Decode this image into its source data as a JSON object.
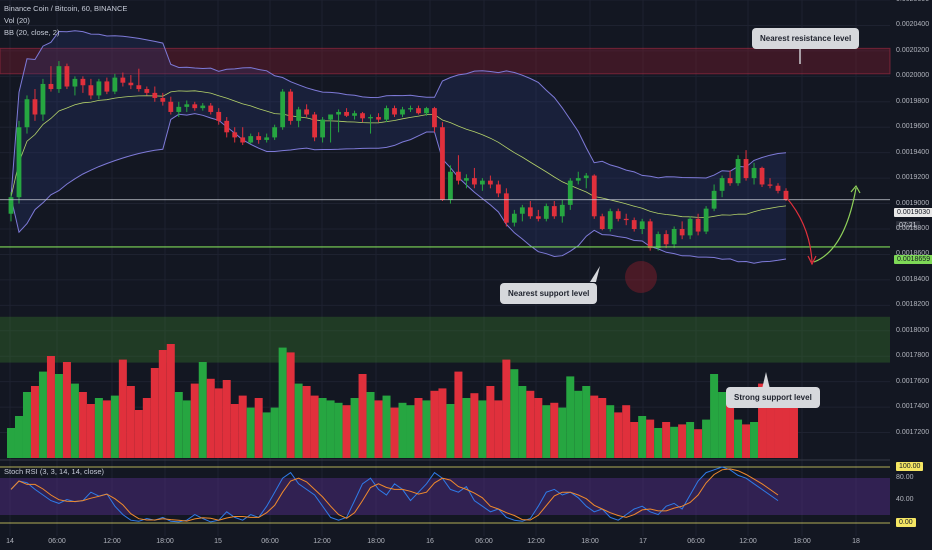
{
  "header": {
    "symbol": "Binance Coin / Bitcoin, 60, BINANCE",
    "vol": "Vol (20)",
    "bb": "BB (20, close, 2)",
    "stoch": "Stoch RSI (3, 3, 14, 14, close)"
  },
  "colors": {
    "up": "#26a641",
    "down": "#e0303c",
    "bb": "#7e7ad8",
    "basis": "#b5d36a",
    "resistance": "#8b1a2e",
    "support_zone": "#3a7d2a",
    "support_line": "#7ed957",
    "arrow_down": "#e0303c",
    "arrow_up": "#8fd15a"
  },
  "annotations": {
    "resistance": "Nearest resistance level",
    "nearest_support": "Nearest support level",
    "strong_support": "Strong support level"
  },
  "price_labels": {
    "current": "0.0019030",
    "timer": "07:21",
    "support": "0.0018659",
    "stoch_top": "100.00",
    "stoch_bottom": "0.00"
  },
  "chart_data": {
    "type": "candlestick",
    "ylim": [
      0.0017,
      0.00206
    ],
    "y_ticks": [
      "0.0020600",
      "0.0020400",
      "0.0020200",
      "0.0020000",
      "0.0019800",
      "0.0019600",
      "0.0019400",
      "0.0019200",
      "0.0019000",
      "0.0018800",
      "0.0018600",
      "0.0018400",
      "0.0018200",
      "0.0018000",
      "0.0017800",
      "0.0017600",
      "0.0017400",
      "0.0017200"
    ],
    "x_ticks": [
      "14",
      "06:00",
      "12:00",
      "18:00",
      "15",
      "06:00",
      "12:00",
      "18:00",
      "16",
      "06:00",
      "12:00",
      "18:00",
      "17",
      "06:00",
      "12:00",
      "18:00",
      "18"
    ],
    "resistance_zone": [
      0.002002,
      0.002022
    ],
    "strong_support_zone": [
      0.001775,
      0.001811
    ],
    "support_level": 0.0018659,
    "current_price": 0.001903,
    "candles": [
      {
        "o": 0.001892,
        "h": 0.001909,
        "l": 0.001886,
        "c": 0.001905
      },
      {
        "o": 0.001905,
        "h": 0.001965,
        "l": 0.0019,
        "c": 0.00196
      },
      {
        "o": 0.00196,
        "h": 0.001985,
        "l": 0.001955,
        "c": 0.001982
      },
      {
        "o": 0.001982,
        "h": 0.00199,
        "l": 0.001965,
        "c": 0.00197
      },
      {
        "o": 0.00197,
        "h": 0.001998,
        "l": 0.001965,
        "c": 0.001994
      },
      {
        "o": 0.001994,
        "h": 0.002008,
        "l": 0.001988,
        "c": 0.00199
      },
      {
        "o": 0.00199,
        "h": 0.002012,
        "l": 0.001987,
        "c": 0.002008
      },
      {
        "o": 0.002008,
        "h": 0.00201,
        "l": 0.00199,
        "c": 0.001992
      },
      {
        "o": 0.001992,
        "h": 0.002,
        "l": 0.001985,
        "c": 0.001998
      },
      {
        "o": 0.001998,
        "h": 0.002,
        "l": 0.001987,
        "c": 0.001993
      },
      {
        "o": 0.001993,
        "h": 0.001998,
        "l": 0.001982,
        "c": 0.001985
      },
      {
        "o": 0.001985,
        "h": 0.001998,
        "l": 0.001982,
        "c": 0.001996
      },
      {
        "o": 0.001996,
        "h": 0.001999,
        "l": 0.001986,
        "c": 0.001988
      },
      {
        "o": 0.001988,
        "h": 0.002002,
        "l": 0.001986,
        "c": 0.001999
      },
      {
        "o": 0.001999,
        "h": 0.002003,
        "l": 0.001992,
        "c": 0.001995
      },
      {
        "o": 0.001995,
        "h": 0.002001,
        "l": 0.00199,
        "c": 0.001993
      },
      {
        "o": 0.001993,
        "h": 0.002006,
        "l": 0.001988,
        "c": 0.00199
      },
      {
        "o": 0.00199,
        "h": 0.001992,
        "l": 0.001985,
        "c": 0.001987
      },
      {
        "o": 0.001987,
        "h": 0.001992,
        "l": 0.00198,
        "c": 0.001983
      },
      {
        "o": 0.001983,
        "h": 0.001987,
        "l": 0.001977,
        "c": 0.00198
      },
      {
        "o": 0.00198,
        "h": 0.001984,
        "l": 0.00197,
        "c": 0.001972
      },
      {
        "o": 0.001972,
        "h": 0.00198,
        "l": 0.001968,
        "c": 0.001976
      },
      {
        "o": 0.001976,
        "h": 0.001981,
        "l": 0.001972,
        "c": 0.001978
      },
      {
        "o": 0.001978,
        "h": 0.00198,
        "l": 0.001973,
        "c": 0.001975
      },
      {
        "o": 0.001975,
        "h": 0.001979,
        "l": 0.001973,
        "c": 0.001977
      },
      {
        "o": 0.001977,
        "h": 0.001979,
        "l": 0.00197,
        "c": 0.001972
      },
      {
        "o": 0.001972,
        "h": 0.001975,
        "l": 0.001962,
        "c": 0.001965
      },
      {
        "o": 0.001965,
        "h": 0.001968,
        "l": 0.001952,
        "c": 0.001956
      },
      {
        "o": 0.001956,
        "h": 0.00196,
        "l": 0.001948,
        "c": 0.001952
      },
      {
        "o": 0.001952,
        "h": 0.00196,
        "l": 0.001946,
        "c": 0.001948
      },
      {
        "o": 0.001948,
        "h": 0.001955,
        "l": 0.001947,
        "c": 0.001953
      },
      {
        "o": 0.001953,
        "h": 0.001956,
        "l": 0.001947,
        "c": 0.00195
      },
      {
        "o": 0.00195,
        "h": 0.001955,
        "l": 0.001948,
        "c": 0.001952
      },
      {
        "o": 0.001952,
        "h": 0.001962,
        "l": 0.00195,
        "c": 0.00196
      },
      {
        "o": 0.00196,
        "h": 0.00199,
        "l": 0.001958,
        "c": 0.001988
      },
      {
        "o": 0.001988,
        "h": 0.00199,
        "l": 0.001962,
        "c": 0.001965
      },
      {
        "o": 0.001965,
        "h": 0.001976,
        "l": 0.00196,
        "c": 0.001974
      },
      {
        "o": 0.001974,
        "h": 0.001978,
        "l": 0.001968,
        "c": 0.00197
      },
      {
        "o": 0.00197,
        "h": 0.001972,
        "l": 0.001949,
        "c": 0.001952
      },
      {
        "o": 0.001952,
        "h": 0.001968,
        "l": 0.001948,
        "c": 0.001966
      },
      {
        "o": 0.001966,
        "h": 0.00197,
        "l": 0.001948,
        "c": 0.00197
      },
      {
        "o": 0.00197,
        "h": 0.001974,
        "l": 0.001956,
        "c": 0.001972
      },
      {
        "o": 0.001972,
        "h": 0.001975,
        "l": 0.001968,
        "c": 0.001969
      },
      {
        "o": 0.001969,
        "h": 0.001973,
        "l": 0.001966,
        "c": 0.001971
      },
      {
        "o": 0.001971,
        "h": 0.001972,
        "l": 0.001964,
        "c": 0.001967
      },
      {
        "o": 0.001967,
        "h": 0.00197,
        "l": 0.001955,
        "c": 0.001968
      },
      {
        "o": 0.001968,
        "h": 0.001971,
        "l": 0.001964,
        "c": 0.001966
      },
      {
        "o": 0.001966,
        "h": 0.001977,
        "l": 0.001964,
        "c": 0.001975
      },
      {
        "o": 0.001975,
        "h": 0.001977,
        "l": 0.001968,
        "c": 0.00197
      },
      {
        "o": 0.00197,
        "h": 0.001976,
        "l": 0.001968,
        "c": 0.001974
      },
      {
        "o": 0.001974,
        "h": 0.001977,
        "l": 0.001972,
        "c": 0.001975
      },
      {
        "o": 0.001975,
        "h": 0.001977,
        "l": 0.00197,
        "c": 0.001971
      },
      {
        "o": 0.001971,
        "h": 0.001976,
        "l": 0.001969,
        "c": 0.001975
      },
      {
        "o": 0.001975,
        "h": 0.001976,
        "l": 0.001956,
        "c": 0.00196
      },
      {
        "o": 0.00196,
        "h": 0.001964,
        "l": 0.001902,
        "c": 0.001903
      },
      {
        "o": 0.001903,
        "h": 0.00193,
        "l": 0.0019,
        "c": 0.001925
      },
      {
        "o": 0.001925,
        "h": 0.001938,
        "l": 0.001915,
        "c": 0.001918
      },
      {
        "o": 0.001918,
        "h": 0.001923,
        "l": 0.001912,
        "c": 0.00192
      },
      {
        "o": 0.00192,
        "h": 0.001928,
        "l": 0.001912,
        "c": 0.001915
      },
      {
        "o": 0.001915,
        "h": 0.00192,
        "l": 0.00191,
        "c": 0.001918
      },
      {
        "o": 0.001918,
        "h": 0.001922,
        "l": 0.001912,
        "c": 0.001915
      },
      {
        "o": 0.001915,
        "h": 0.001918,
        "l": 0.001905,
        "c": 0.001908
      },
      {
        "o": 0.001908,
        "h": 0.001912,
        "l": 0.001882,
        "c": 0.001885
      },
      {
        "o": 0.001885,
        "h": 0.001895,
        "l": 0.001882,
        "c": 0.001892
      },
      {
        "o": 0.001892,
        "h": 0.001899,
        "l": 0.001886,
        "c": 0.001897
      },
      {
        "o": 0.001897,
        "h": 0.001902,
        "l": 0.001888,
        "c": 0.00189
      },
      {
        "o": 0.00189,
        "h": 0.001895,
        "l": 0.001886,
        "c": 0.001888
      },
      {
        "o": 0.001888,
        "h": 0.0019,
        "l": 0.001886,
        "c": 0.001898
      },
      {
        "o": 0.001898,
        "h": 0.001902,
        "l": 0.001888,
        "c": 0.00189
      },
      {
        "o": 0.00189,
        "h": 0.001903,
        "l": 0.001885,
        "c": 0.001899
      },
      {
        "o": 0.001899,
        "h": 0.00192,
        "l": 0.001895,
        "c": 0.001918
      },
      {
        "o": 0.001918,
        "h": 0.001925,
        "l": 0.001915,
        "c": 0.00192
      },
      {
        "o": 0.00192,
        "h": 0.001924,
        "l": 0.001912,
        "c": 0.001922
      },
      {
        "o": 0.001922,
        "h": 0.001923,
        "l": 0.001888,
        "c": 0.00189
      },
      {
        "o": 0.00189,
        "h": 0.001892,
        "l": 0.001879,
        "c": 0.00188
      },
      {
        "o": 0.00188,
        "h": 0.001896,
        "l": 0.001878,
        "c": 0.001894
      },
      {
        "o": 0.001894,
        "h": 0.001896,
        "l": 0.001886,
        "c": 0.001888
      },
      {
        "o": 0.001888,
        "h": 0.001892,
        "l": 0.001883,
        "c": 0.001887
      },
      {
        "o": 0.001887,
        "h": 0.001889,
        "l": 0.001878,
        "c": 0.00188
      },
      {
        "o": 0.00188,
        "h": 0.001888,
        "l": 0.001876,
        "c": 0.001886
      },
      {
        "o": 0.001886,
        "h": 0.001888,
        "l": 0.001863,
        "c": 0.001865
      },
      {
        "o": 0.001865,
        "h": 0.001878,
        "l": 0.001863,
        "c": 0.001876
      },
      {
        "o": 0.001876,
        "h": 0.001879,
        "l": 0.001865,
        "c": 0.001868
      },
      {
        "o": 0.001868,
        "h": 0.001882,
        "l": 0.001865,
        "c": 0.00188
      },
      {
        "o": 0.00188,
        "h": 0.001886,
        "l": 0.001872,
        "c": 0.001875
      },
      {
        "o": 0.001875,
        "h": 0.00189,
        "l": 0.001872,
        "c": 0.001888
      },
      {
        "o": 0.001888,
        "h": 0.001892,
        "l": 0.001875,
        "c": 0.001878
      },
      {
        "o": 0.001878,
        "h": 0.001898,
        "l": 0.001876,
        "c": 0.001896
      },
      {
        "o": 0.001896,
        "h": 0.001915,
        "l": 0.001894,
        "c": 0.00191
      },
      {
        "o": 0.00191,
        "h": 0.001922,
        "l": 0.001905,
        "c": 0.00192
      },
      {
        "o": 0.00192,
        "h": 0.001926,
        "l": 0.001914,
        "c": 0.001916
      },
      {
        "o": 0.001916,
        "h": 0.001938,
        "l": 0.001914,
        "c": 0.001935
      },
      {
        "o": 0.001935,
        "h": 0.001942,
        "l": 0.001918,
        "c": 0.00192
      },
      {
        "o": 0.00192,
        "h": 0.001932,
        "l": 0.001915,
        "c": 0.001928
      },
      {
        "o": 0.001928,
        "h": 0.001929,
        "l": 0.001913,
        "c": 0.001915
      },
      {
        "o": 0.001915,
        "h": 0.00192,
        "l": 0.001912,
        "c": 0.001914
      },
      {
        "o": 0.001914,
        "h": 0.001916,
        "l": 0.001908,
        "c": 0.00191
      },
      {
        "o": 0.00191,
        "h": 0.001912,
        "l": 0.001902,
        "c": 0.001903
      }
    ],
    "volume": [
      0.25,
      0.35,
      0.55,
      0.6,
      0.72,
      0.85,
      0.7,
      0.8,
      0.62,
      0.55,
      0.45,
      0.5,
      0.48,
      0.52,
      0.82,
      0.6,
      0.4,
      0.5,
      0.75,
      0.9,
      0.95,
      0.55,
      0.48,
      0.62,
      0.8,
      0.66,
      0.58,
      0.65,
      0.45,
      0.52,
      0.42,
      0.5,
      0.38,
      0.42,
      0.92,
      0.88,
      0.62,
      0.6,
      0.52,
      0.5,
      0.48,
      0.46,
      0.44,
      0.5,
      0.7,
      0.55,
      0.48,
      0.52,
      0.42,
      0.46,
      0.44,
      0.5,
      0.48,
      0.56,
      0.58,
      0.45,
      0.72,
      0.5,
      0.54,
      0.48,
      0.6,
      0.48,
      0.82,
      0.74,
      0.6,
      0.56,
      0.5,
      0.44,
      0.46,
      0.42,
      0.68,
      0.56,
      0.6,
      0.52,
      0.5,
      0.44,
      0.38,
      0.44,
      0.3,
      0.35,
      0.32,
      0.25,
      0.3,
      0.26,
      0.28,
      0.3,
      0.24,
      0.32,
      0.7,
      0.55,
      0.5,
      0.32,
      0.28,
      0.3,
      0.62,
      0.52,
      0.44,
      0.5,
      0.48
    ]
  }
}
